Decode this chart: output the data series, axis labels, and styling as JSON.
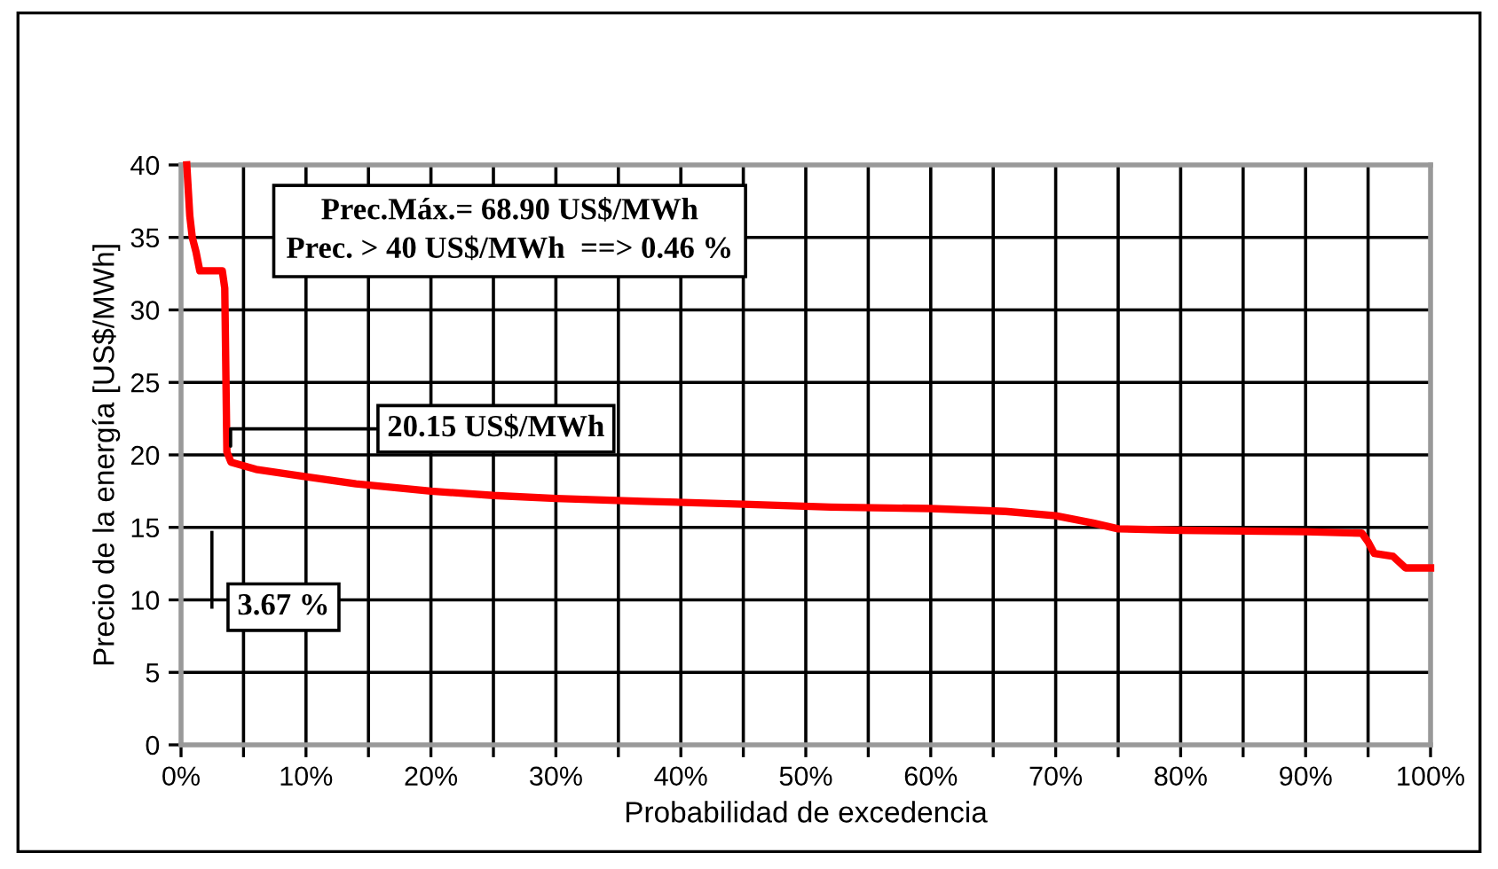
{
  "chart_data": {
    "type": "line",
    "xlabel": "Probabilidad de excedencia",
    "ylabel": "Precio de la energía [US$/MWh]",
    "x": [
      0.46,
      0.7,
      0.9,
      1.2,
      1.5,
      3.3,
      3.5,
      3.67,
      4.0,
      6.0,
      10.0,
      14.0,
      20.0,
      25.0,
      30.0,
      37.0,
      45.0,
      52.0,
      60.0,
      66.0,
      70.0,
      73.0,
      75.0,
      80.0,
      90.0,
      94.5,
      95.0,
      95.5,
      97.0,
      98.0,
      100.0
    ],
    "series": [
      {
        "color": "#ff0000",
        "values": [
          40,
          36.5,
          35,
          34,
          32.7,
          32.7,
          31.5,
          20.2,
          19.5,
          19.0,
          18.5,
          18.0,
          17.5,
          17.2,
          17.0,
          16.8,
          16.6,
          16.4,
          16.3,
          16.1,
          15.8,
          15.3,
          14.9,
          14.8,
          14.7,
          14.6,
          14.0,
          13.2,
          13.0,
          12.2,
          12.2
        ]
      }
    ],
    "xlim": [
      0,
      100
    ],
    "ylim": [
      0,
      40
    ],
    "xticks": [
      {
        "value": 0,
        "label": "0%"
      },
      {
        "value": 5,
        "label": null
      },
      {
        "value": 10,
        "label": "10%"
      },
      {
        "value": 15,
        "label": null
      },
      {
        "value": 20,
        "label": "20%"
      },
      {
        "value": 25,
        "label": null
      },
      {
        "value": 30,
        "label": "30%"
      },
      {
        "value": 35,
        "label": null
      },
      {
        "value": 40,
        "label": "40%"
      },
      {
        "value": 45,
        "label": null
      },
      {
        "value": 50,
        "label": "50%"
      },
      {
        "value": 55,
        "label": null
      },
      {
        "value": 60,
        "label": "60%"
      },
      {
        "value": 65,
        "label": null
      },
      {
        "value": 70,
        "label": "70%"
      },
      {
        "value": 75,
        "label": null
      },
      {
        "value": 80,
        "label": "80%"
      },
      {
        "value": 85,
        "label": null
      },
      {
        "value": 90,
        "label": "90%"
      },
      {
        "value": 95,
        "label": null
      },
      {
        "value": 100,
        "label": "100%"
      }
    ],
    "yticks": [
      0,
      5,
      10,
      15,
      20,
      25,
      30,
      35,
      40
    ],
    "grid": true,
    "line_style": "solid",
    "marker": "none",
    "annotations": [
      "Prec.Máx.= 68.90 US$/MWh\nPrec. > 40 US$/MWh  ==> 0.46 %",
      {
        "text": "20.15 US$/MWh",
        "x": 3.67,
        "y": 20.15
      },
      "3.67 %"
    ]
  }
}
